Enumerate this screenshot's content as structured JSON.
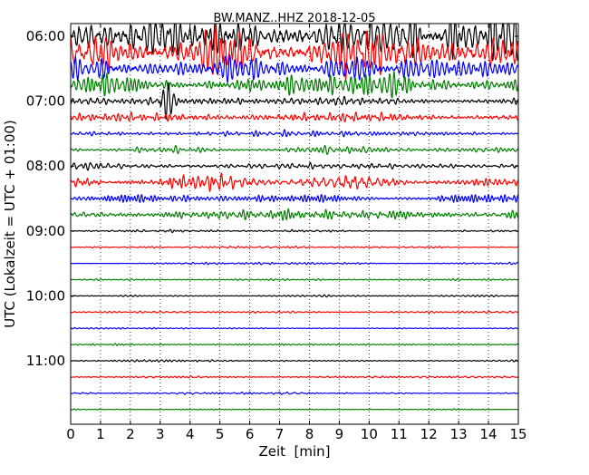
{
  "chart_data": {
    "type": "line",
    "title": "BW.MANZ..HHZ 2018-12-05",
    "xlabel": "Zeit  [min]",
    "ylabel": "UTC (Lokalzeit = UTC + 01:00)",
    "xlim": [
      0,
      15
    ],
    "xticks": [
      0,
      1,
      2,
      3,
      4,
      5,
      6,
      7,
      8,
      9,
      10,
      11,
      12,
      13,
      14,
      15
    ],
    "xtick_labels": [
      "0",
      "1",
      "2",
      "3",
      "4",
      "5",
      "6",
      "7",
      "8",
      "9",
      "10",
      "11",
      "12",
      "13",
      "14",
      "15"
    ],
    "grid": "vertical dotted",
    "hour_labels": [
      "06:00",
      "07:00",
      "08:00",
      "09:00",
      "10:00",
      "11:00"
    ],
    "series_colors": [
      "#000000",
      "#ff0000",
      "#0000ff",
      "#008000"
    ],
    "traces": [
      {
        "start": "06:00",
        "color": "#000000",
        "amplitude": 1.6
      },
      {
        "start": "06:15",
        "color": "#ff0000",
        "amplitude": 1.5
      },
      {
        "start": "06:30",
        "color": "#0000ff",
        "amplitude": 1.0
      },
      {
        "start": "06:45",
        "color": "#008000",
        "amplitude": 0.7
      },
      {
        "start": "07:00",
        "color": "#000000",
        "amplitude": 0.35
      },
      {
        "start": "07:15",
        "color": "#ff0000",
        "amplitude": 0.3
      },
      {
        "start": "07:30",
        "color": "#0000ff",
        "amplitude": 0.18
      },
      {
        "start": "07:45",
        "color": "#008000",
        "amplitude": 0.22
      },
      {
        "start": "08:00",
        "color": "#000000",
        "amplitude": 0.3
      },
      {
        "start": "08:15",
        "color": "#ff0000",
        "amplitude": 0.38
      },
      {
        "start": "08:30",
        "color": "#0000ff",
        "amplitude": 0.35
      },
      {
        "start": "08:45",
        "color": "#008000",
        "amplitude": 0.32
      },
      {
        "start": "09:00",
        "color": "#000000",
        "amplitude": 0.08
      },
      {
        "start": "09:15",
        "color": "#ff0000",
        "amplitude": 0.07
      },
      {
        "start": "09:30",
        "color": "#0000ff",
        "amplitude": 0.08
      },
      {
        "start": "09:45",
        "color": "#008000",
        "amplitude": 0.07
      },
      {
        "start": "10:00",
        "color": "#000000",
        "amplitude": 0.06
      },
      {
        "start": "10:15",
        "color": "#ff0000",
        "amplitude": 0.06
      },
      {
        "start": "10:30",
        "color": "#0000ff",
        "amplitude": 0.06
      },
      {
        "start": "10:45",
        "color": "#008000",
        "amplitude": 0.06
      },
      {
        "start": "11:00",
        "color": "#000000",
        "amplitude": 0.06
      },
      {
        "start": "11:15",
        "color": "#ff0000",
        "amplitude": 0.06
      },
      {
        "start": "11:30",
        "color": "#0000ff",
        "amplitude": 0.06
      },
      {
        "start": "11:45",
        "color": "#008000",
        "amplitude": 0.06
      }
    ],
    "events": [
      {
        "start": "07:00",
        "x_min": 3.1,
        "amplitude": 1.3
      },
      {
        "start": "06:00",
        "x_min": 5.5,
        "amplitude": 1.0
      },
      {
        "start": "06:00",
        "x_min": 10.1,
        "amplitude": 1.2
      }
    ]
  }
}
